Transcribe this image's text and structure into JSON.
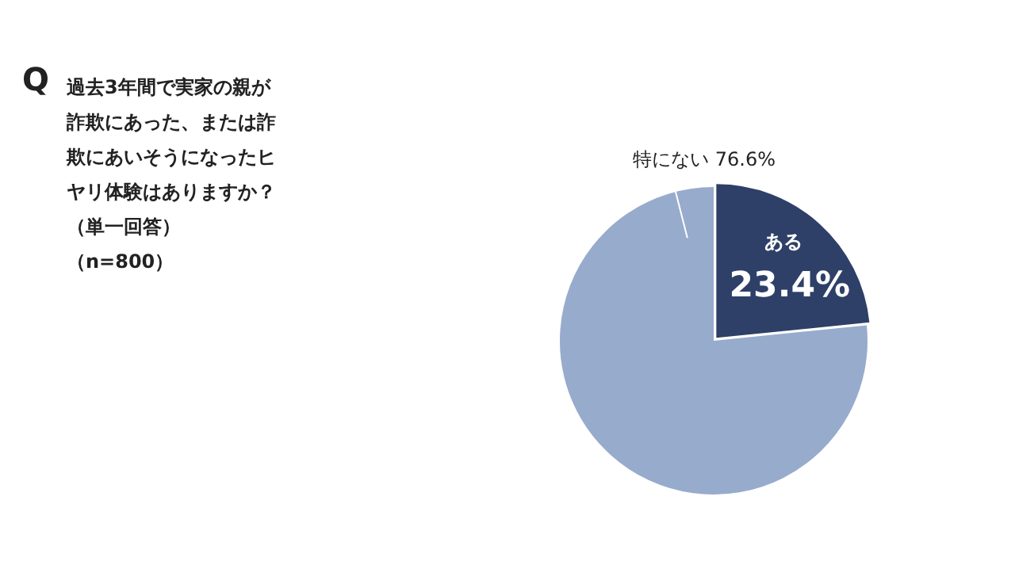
{
  "chart_data": {
    "type": "pie",
    "title": "過去3年間で実家の親が詐欺にあった、または詐欺にあいそうになったヒヤリ体験はありますか？",
    "subtitle": "（単一回答）（n=800）",
    "annotations": [
      "Q"
    ],
    "categories": [
      "ある",
      "特にない"
    ],
    "values": [
      23.4,
      76.6
    ],
    "value_labels": [
      "23.4%",
      "76.6%"
    ],
    "colors": [
      "#2e4068",
      "#97abcc"
    ],
    "legend": false
  }
}
